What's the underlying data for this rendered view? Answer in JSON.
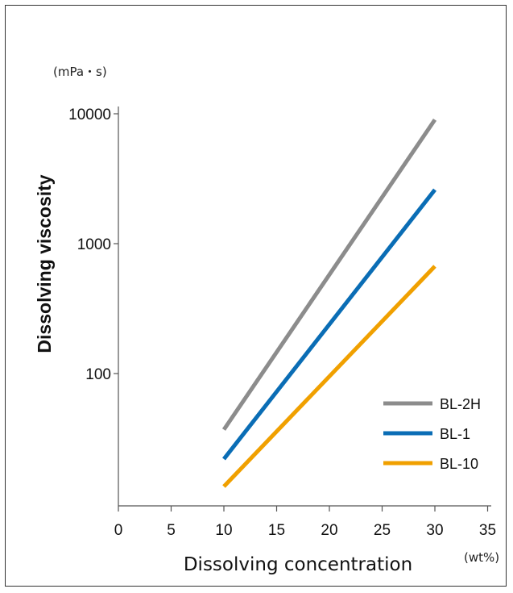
{
  "chart_data": {
    "type": "line",
    "title": "",
    "xlabel": "Dissolving concentration",
    "x_unit": "(wt%)",
    "ylabel": "Dissolving viscosity",
    "y_unit": "(mPa・s)",
    "yscale": "log",
    "xlim": [
      0,
      35
    ],
    "ylim": [
      10,
      10000
    ],
    "x_ticks": [
      "0",
      "5",
      "10",
      "15",
      "20",
      "25",
      "30",
      "35"
    ],
    "y_ticks": [
      {
        "value": 100,
        "label": "100"
      },
      {
        "value": 1000,
        "label": "1000"
      },
      {
        "value": 10000,
        "label": "10000"
      }
    ],
    "grid": false,
    "legend_position": "bottom-right",
    "series": [
      {
        "name": "BL-2H",
        "color": "#8c8c8c",
        "x": [
          10,
          30
        ],
        "y": [
          37,
          9000
        ]
      },
      {
        "name": "BL-1",
        "color": "#0a6db5",
        "x": [
          10,
          30
        ],
        "y": [
          22,
          2600
        ]
      },
      {
        "name": "BL-10",
        "color": "#f0a000",
        "x": [
          10,
          30
        ],
        "y": [
          13.5,
          670
        ]
      }
    ]
  }
}
